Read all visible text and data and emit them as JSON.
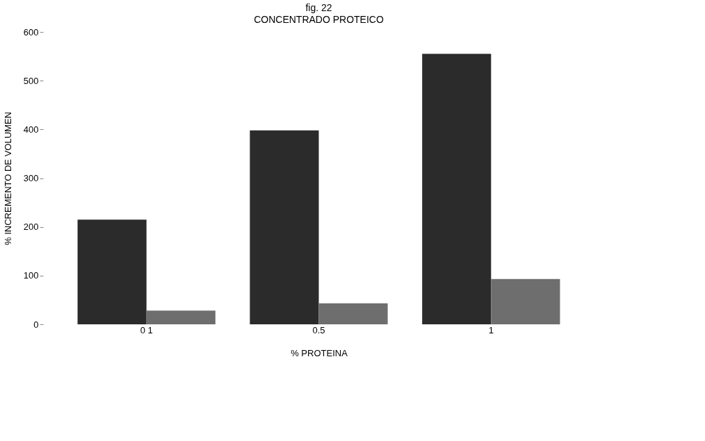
{
  "chart_data": {
    "type": "bar",
    "title": "fig. 22",
    "subtitle": "CONCENTRADO PROTEICO",
    "xlabel": "% PROTEINA",
    "ylabel": "% INCREMENTO DE VOLUMEN",
    "categories": [
      "0 1",
      "0.5",
      "1"
    ],
    "series": [
      {
        "color": "#2b2b2b",
        "values": [
          215,
          398,
          555
        ]
      },
      {
        "color": "#6e6e6e",
        "values": [
          28,
          43,
          93
        ]
      }
    ],
    "ylim": [
      0,
      600
    ],
    "yticks": [
      0,
      100,
      200,
      300,
      400,
      500,
      600
    ],
    "grid": false,
    "legend": false
  }
}
